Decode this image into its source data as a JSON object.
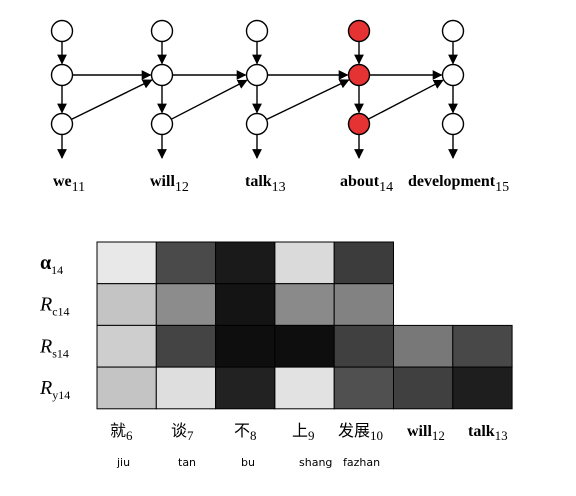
{
  "network": {
    "node_fill": "#ffffff",
    "highlight_fill": "#e53232",
    "stroke": "#000000",
    "columns": [
      {
        "word": "we",
        "index": "11",
        "highlighted": false
      },
      {
        "word": "will",
        "index": "12",
        "highlighted": false
      },
      {
        "word": "talk",
        "index": "13",
        "highlighted": false
      },
      {
        "word": "about",
        "index": "14",
        "highlighted": true
      },
      {
        "word": "development",
        "index": "15",
        "highlighted": false
      }
    ]
  },
  "heatmap": {
    "rows": [
      {
        "main": "α",
        "sub": "14",
        "italic": false
      },
      {
        "main": "R",
        "sub": "c14",
        "italic": true
      },
      {
        "main": "R",
        "sub": "s14",
        "italic": true
      },
      {
        "main": "R",
        "sub": "y14",
        "italic": true
      }
    ],
    "columns": [
      {
        "label": "就",
        "index": "6",
        "pinyin": "jiu"
      },
      {
        "label": "谈",
        "index": "7",
        "pinyin": "tan"
      },
      {
        "label": "不",
        "index": "8",
        "pinyin": "bu"
      },
      {
        "label": "上",
        "index": "9",
        "pinyin": "shang"
      },
      {
        "label": "发展",
        "index": "10",
        "pinyin": "fazhan"
      },
      {
        "label": "will",
        "index": "12",
        "pinyin": ""
      },
      {
        "label": "talk",
        "index": "13",
        "pinyin": ""
      }
    ],
    "cells": [
      [
        232,
        74,
        26,
        218,
        60,
        null,
        null
      ],
      [
        196,
        140,
        20,
        138,
        130,
        null,
        null
      ],
      [
        206,
        68,
        14,
        14,
        64,
        120,
        72
      ],
      [
        196,
        222,
        34,
        226,
        80,
        64,
        30
      ]
    ]
  }
}
